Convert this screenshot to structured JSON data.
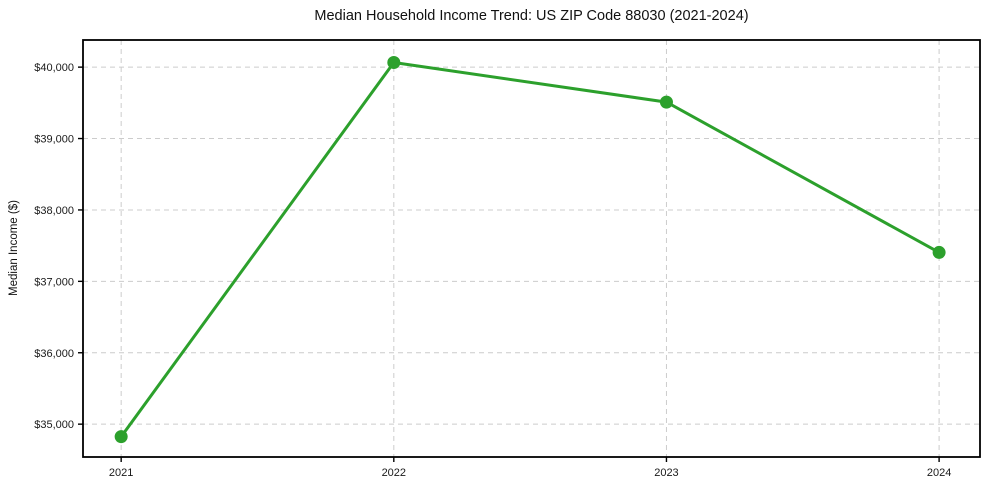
{
  "chart_data": {
    "type": "line",
    "title": "Median Household Income Trend: US ZIP Code 88030 (2021-2024)",
    "xlabel": "",
    "ylabel": "Median Income ($)",
    "x": [
      2021,
      2022,
      2023,
      2024
    ],
    "xtick_labels": [
      "2021",
      "2022",
      "2023",
      "2024"
    ],
    "values": [
      34825,
      40065,
      39510,
      37405
    ],
    "yticks": [
      35000,
      36000,
      37000,
      38000,
      39000,
      40000
    ],
    "ytick_labels": [
      "$35,000",
      "$36,000",
      "$37,000",
      "$38,000",
      "$39,000",
      "$40,000"
    ],
    "ylim": [
      34540,
      40380
    ],
    "xlim": [
      2020.86,
      2024.15
    ],
    "grid": true,
    "grid_style": "dashed",
    "legend": "none",
    "line_color": "#2ca02c",
    "marker": "circle",
    "marker_color": "#2ca02c",
    "grid_color": "#cccccc",
    "background_color": "#ffffff"
  }
}
